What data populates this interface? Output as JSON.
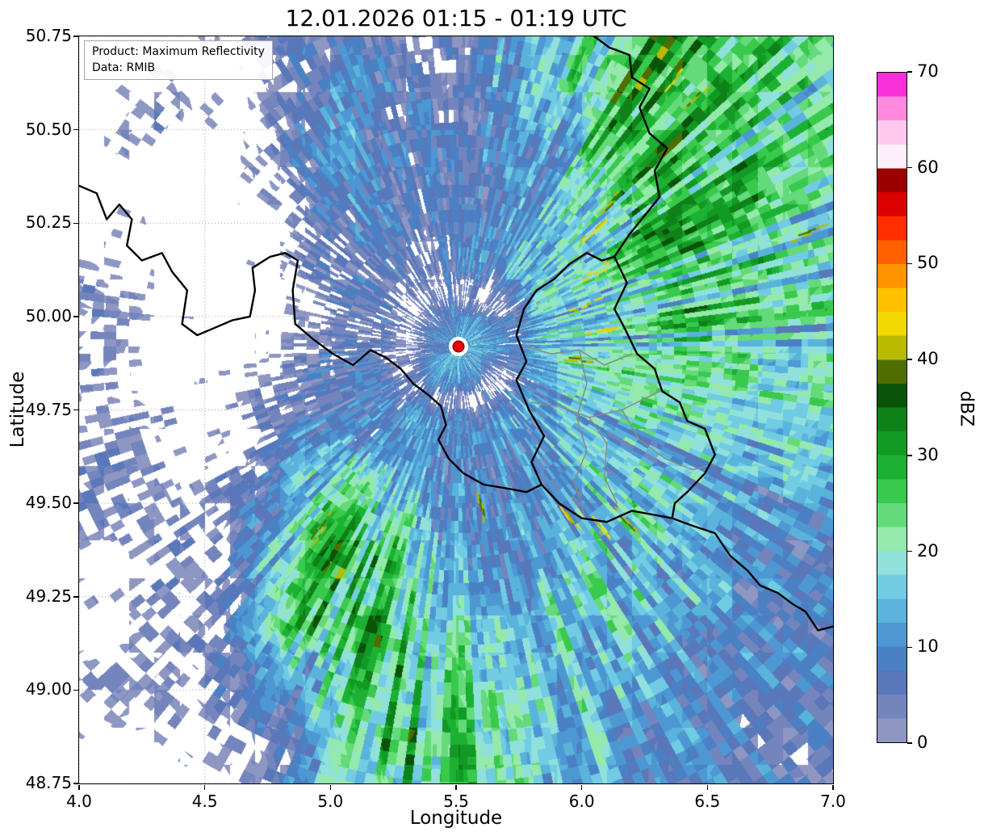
{
  "info_box": {
    "line1": "Product: Maximum Reflectivity",
    "line2": "Data: RMIB"
  },
  "chart_data": {
    "type": "heatmap",
    "title": "12.01.2026 01:15 - 01:19 UTC",
    "xlabel": "Longitude",
    "ylabel": "Latitude",
    "x_ticks": [
      "4.0",
      "4.5",
      "5.0",
      "5.5",
      "6.0",
      "6.5",
      "7.0"
    ],
    "y_ticks": [
      "50.75",
      "50.50",
      "50.25",
      "50.00",
      "49.75",
      "49.50",
      "49.25",
      "49.00",
      "48.75"
    ],
    "extent": {
      "lon_min": 4.0,
      "lon_max": 7.0,
      "lat_min": 48.75,
      "lat_max": 50.75
    },
    "grid_on": true,
    "colorbar": {
      "label": "dBZ",
      "ticks": [
        0,
        10,
        20,
        30,
        40,
        50,
        60,
        70
      ],
      "vmin": 0,
      "vmax": 70,
      "step": 2.5,
      "palette": [
        "#8e96c2",
        "#7484bc",
        "#5a77b9",
        "#4a81c4",
        "#4d98d3",
        "#5ab3db",
        "#71cce3",
        "#90e1dc",
        "#94e9ab",
        "#64da7a",
        "#39c94d",
        "#1db134",
        "#139a25",
        "#0e8118",
        "#095309",
        "#506e00",
        "#b9b900",
        "#f0d800",
        "#ffc000",
        "#ff9300",
        "#ff6000",
        "#ff2d00",
        "#dc0000",
        "#9a0000",
        "#fdf0fa",
        "#ffc8ef",
        "#ff8ade",
        "#fa30d8"
      ]
    },
    "radar_site": {
      "lon": 5.51,
      "lat": 49.92,
      "marker_color": "#e8000b"
    },
    "reflectivity_grid": {
      "cols": 20,
      "rows": 20,
      "lon_range": [
        4.0,
        7.0
      ],
      "lat_range": [
        50.75,
        48.75
      ],
      "units": "dBZ",
      "values": [
        [
          -9,
          -8,
          -6,
          -8,
          -2,
          3,
          7,
          9,
          3,
          4,
          9,
          12,
          15,
          26,
          31,
          31,
          29,
          26,
          24,
          22
        ],
        [
          -8,
          -6,
          -3,
          -7,
          -3,
          4,
          8,
          10,
          5,
          3,
          10,
          13,
          17,
          27,
          32,
          30,
          28,
          26,
          24,
          22
        ],
        [
          -6,
          -3,
          0,
          -6,
          -4,
          3,
          9,
          11,
          7,
          8,
          6,
          11,
          15,
          25,
          31,
          30,
          28,
          26,
          24,
          22
        ],
        [
          -8,
          -4,
          -2,
          -8,
          -6,
          1,
          9,
          11,
          9,
          7,
          8,
          10,
          13,
          23,
          29,
          30,
          28,
          26,
          23,
          21
        ],
        [
          -5,
          -6,
          -8,
          -8,
          -7,
          -1,
          6,
          10,
          9,
          5,
          7,
          9,
          14,
          21,
          27,
          29,
          27,
          25,
          22,
          20
        ],
        [
          -7,
          -2,
          -8,
          -8,
          -8,
          -3,
          4,
          8,
          6,
          3,
          8,
          12,
          16,
          19,
          25,
          28,
          27,
          24,
          22,
          20
        ],
        [
          0,
          -4,
          -8,
          -8,
          -6,
          -5,
          2,
          6,
          5,
          8,
          12,
          14,
          16,
          19,
          23,
          26,
          26,
          24,
          22,
          20
        ],
        [
          4,
          2,
          -5,
          -8,
          -6,
          -3,
          1,
          5,
          8,
          10,
          12,
          14,
          16,
          18,
          21,
          24,
          24,
          22,
          20,
          18
        ],
        [
          2,
          0,
          -6,
          -8,
          -5,
          -2,
          3,
          7,
          10,
          12,
          13,
          14,
          15,
          17,
          20,
          22,
          22,
          20,
          19,
          18
        ],
        [
          0,
          -2,
          -6,
          -7,
          -3,
          1,
          5,
          8,
          10,
          12,
          11,
          13,
          14,
          16,
          18,
          20,
          20,
          18,
          18,
          16
        ],
        [
          4,
          4,
          0,
          -4,
          -1,
          5,
          11,
          9,
          10,
          12,
          11,
          12,
          14,
          16,
          18,
          18,
          18,
          16,
          16,
          14
        ],
        [
          2,
          4,
          2,
          -2,
          1,
          9,
          18,
          20,
          13,
          11,
          9,
          11,
          13,
          16,
          18,
          18,
          16,
          14,
          14,
          12
        ],
        [
          0,
          2,
          4,
          0,
          3,
          13,
          22,
          24,
          18,
          13,
          11,
          9,
          13,
          17,
          20,
          18,
          14,
          12,
          12,
          10
        ],
        [
          -2,
          0,
          2,
          1,
          5,
          15,
          26,
          28,
          22,
          15,
          12,
          11,
          14,
          18,
          20,
          16,
          12,
          11,
          10,
          10
        ],
        [
          -4,
          -2,
          0,
          2,
          7,
          17,
          28,
          30,
          24,
          18,
          14,
          13,
          16,
          18,
          18,
          14,
          12,
          10,
          10,
          9
        ],
        [
          -6,
          -4,
          -2,
          1,
          8,
          18,
          27,
          30,
          26,
          20,
          16,
          14,
          18,
          18,
          16,
          14,
          11,
          10,
          9,
          8
        ],
        [
          0,
          2,
          0,
          2,
          5,
          11,
          19,
          27,
          28,
          24,
          20,
          16,
          18,
          16,
          14,
          12,
          10,
          9,
          8,
          8
        ],
        [
          -2,
          0,
          -2,
          0,
          3,
          9,
          16,
          24,
          28,
          26,
          22,
          18,
          18,
          16,
          14,
          12,
          10,
          8,
          8,
          7
        ],
        [
          -6,
          -4,
          -4,
          -2,
          1,
          7,
          13,
          21,
          27,
          26,
          24,
          20,
          16,
          14,
          12,
          10,
          9,
          8,
          7,
          6
        ],
        [
          -9,
          -6,
          -6,
          -4,
          -1,
          5,
          11,
          19,
          25,
          26,
          24,
          20,
          16,
          14,
          12,
          10,
          8,
          7,
          6,
          6
        ]
      ]
    },
    "hotspots": [
      {
        "lon": 6.03,
        "lat": 50.22,
        "v": 44
      },
      {
        "lon": 6.05,
        "lat": 50.12,
        "v": 46
      },
      {
        "lon": 6.0,
        "lat": 50.03,
        "v": 43
      },
      {
        "lon": 6.07,
        "lat": 49.96,
        "v": 45
      },
      {
        "lon": 5.97,
        "lat": 49.89,
        "v": 41
      },
      {
        "lon": 6.1,
        "lat": 50.3,
        "v": 42
      },
      {
        "lon": 6.36,
        "lat": 50.63,
        "v": 44
      },
      {
        "lon": 6.44,
        "lat": 50.58,
        "v": 41
      },
      {
        "lon": 6.88,
        "lat": 50.22,
        "v": 41
      },
      {
        "lon": 5.6,
        "lat": 49.5,
        "v": 41
      },
      {
        "lon": 5.95,
        "lat": 49.47,
        "v": 43
      },
      {
        "lon": 6.07,
        "lat": 49.44,
        "v": 44
      },
      {
        "lon": 6.17,
        "lat": 49.46,
        "v": 41
      },
      {
        "lon": 4.98,
        "lat": 49.44,
        "v": 40
      }
    ],
    "borders": {
      "country_color": "#000000",
      "region_color": "#8a8a8a",
      "country": [
        [
          [
            4.0,
            50.35
          ],
          [
            4.07,
            50.33
          ],
          [
            4.11,
            50.26
          ],
          [
            4.16,
            50.3
          ],
          [
            4.21,
            50.26
          ],
          [
            4.19,
            50.19
          ],
          [
            4.25,
            50.15
          ],
          [
            4.33,
            50.17
          ],
          [
            4.37,
            50.12
          ],
          [
            4.43,
            50.07
          ],
          [
            4.41,
            49.98
          ],
          [
            4.47,
            49.95
          ],
          [
            4.54,
            49.97
          ],
          [
            4.61,
            49.99
          ],
          [
            4.68,
            50.0
          ],
          [
            4.7,
            50.07
          ],
          [
            4.69,
            50.13
          ],
          [
            4.76,
            50.16
          ],
          [
            4.82,
            50.17
          ],
          [
            4.87,
            50.15
          ],
          [
            4.85,
            50.07
          ],
          [
            4.86,
            49.98
          ],
          [
            4.93,
            49.94
          ],
          [
            5.01,
            49.9
          ],
          [
            5.09,
            49.87
          ],
          [
            5.16,
            49.91
          ],
          [
            5.22,
            49.89
          ],
          [
            5.28,
            49.86
          ],
          [
            5.33,
            49.82
          ],
          [
            5.39,
            49.79
          ],
          [
            5.44,
            49.76
          ],
          [
            5.46,
            49.71
          ],
          [
            5.43,
            49.67
          ],
          [
            5.47,
            49.62
          ],
          [
            5.53,
            49.58
          ],
          [
            5.61,
            49.55
          ],
          [
            5.7,
            49.54
          ],
          [
            5.78,
            49.53
          ],
          [
            5.84,
            49.55
          ]
        ],
        [
          [
            5.84,
            49.55
          ],
          [
            5.8,
            49.61
          ],
          [
            5.85,
            49.68
          ],
          [
            5.79,
            49.75
          ],
          [
            5.74,
            49.83
          ],
          [
            5.78,
            49.88
          ],
          [
            5.74,
            49.95
          ],
          [
            5.77,
            50.02
          ],
          [
            5.82,
            50.07
          ],
          [
            5.89,
            50.1
          ],
          [
            5.95,
            50.14
          ],
          [
            6.02,
            50.17
          ],
          [
            6.08,
            50.15
          ],
          [
            6.13,
            50.16
          ],
          [
            6.18,
            50.09
          ],
          [
            6.13,
            50.02
          ],
          [
            6.17,
            49.97
          ],
          [
            6.22,
            49.9
          ],
          [
            6.29,
            49.86
          ],
          [
            6.32,
            49.8
          ],
          [
            6.39,
            49.77
          ],
          [
            6.42,
            49.72
          ],
          [
            6.49,
            49.7
          ],
          [
            6.53,
            49.63
          ],
          [
            6.49,
            49.58
          ],
          [
            6.42,
            49.53
          ],
          [
            6.37,
            49.5
          ],
          [
            6.36,
            49.46
          ],
          [
            6.28,
            49.47
          ],
          [
            6.2,
            49.48
          ],
          [
            6.1,
            49.45
          ],
          [
            6.0,
            49.46
          ],
          [
            5.91,
            49.5
          ],
          [
            5.84,
            49.55
          ]
        ],
        [
          [
            6.13,
            50.16
          ],
          [
            6.19,
            50.22
          ],
          [
            6.25,
            50.27
          ],
          [
            6.31,
            50.32
          ],
          [
            6.29,
            50.39
          ],
          [
            6.34,
            50.45
          ],
          [
            6.27,
            50.49
          ],
          [
            6.23,
            50.56
          ],
          [
            6.27,
            50.61
          ],
          [
            6.2,
            50.64
          ],
          [
            6.19,
            50.7
          ],
          [
            6.11,
            50.72
          ],
          [
            6.05,
            50.75
          ]
        ],
        [
          [
            6.36,
            49.46
          ],
          [
            6.44,
            49.44
          ],
          [
            6.53,
            49.42
          ],
          [
            6.59,
            49.36
          ],
          [
            6.66,
            49.32
          ],
          [
            6.71,
            49.28
          ],
          [
            6.78,
            49.26
          ],
          [
            6.84,
            49.23
          ],
          [
            6.89,
            49.21
          ],
          [
            6.94,
            49.16
          ],
          [
            7.0,
            49.17
          ]
        ]
      ],
      "region": [
        [
          [
            5.77,
            49.92
          ],
          [
            5.88,
            49.9
          ],
          [
            5.99,
            49.91
          ],
          [
            6.09,
            49.87
          ],
          [
            6.2,
            49.9
          ]
        ],
        [
          [
            5.8,
            49.77
          ],
          [
            5.91,
            49.76
          ],
          [
            6.03,
            49.73
          ],
          [
            6.16,
            49.75
          ],
          [
            6.31,
            49.8
          ]
        ],
        [
          [
            5.99,
            49.91
          ],
          [
            6.02,
            49.82
          ],
          [
            5.98,
            49.73
          ],
          [
            6.02,
            49.64
          ],
          [
            5.97,
            49.56
          ],
          [
            6.01,
            49.47
          ]
        ],
        [
          [
            6.16,
            49.75
          ],
          [
            6.23,
            49.67
          ],
          [
            6.33,
            49.62
          ],
          [
            6.44,
            49.59
          ],
          [
            6.5,
            49.6
          ]
        ],
        [
          [
            6.03,
            49.73
          ],
          [
            6.1,
            49.66
          ],
          [
            6.09,
            49.57
          ],
          [
            6.14,
            49.5
          ]
        ]
      ]
    }
  }
}
